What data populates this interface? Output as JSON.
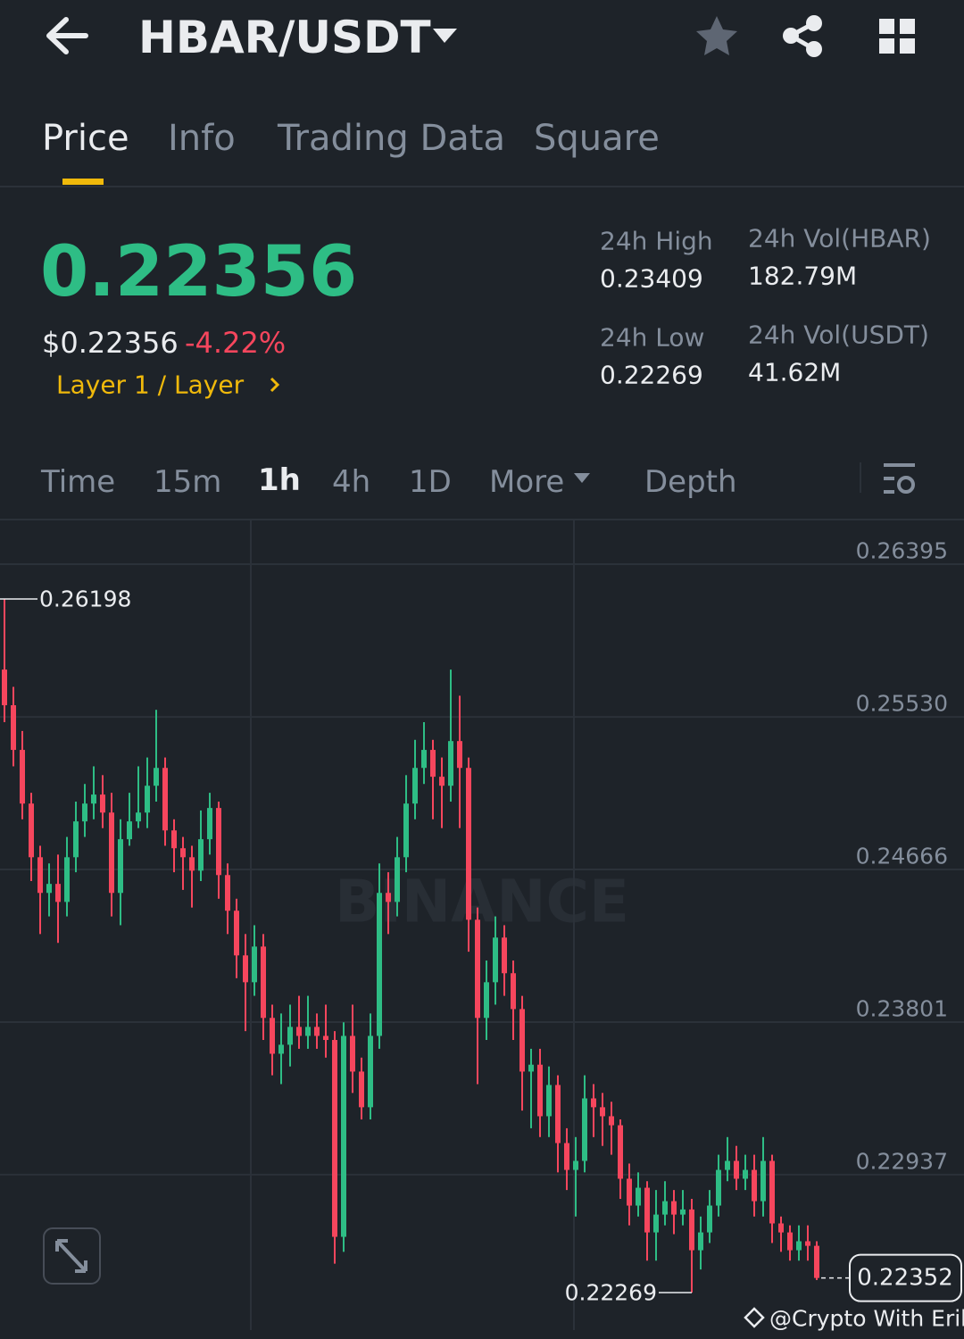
{
  "header": {
    "pair": "HBAR/USDT"
  },
  "tabs": [
    "Price",
    "Info",
    "Trading Data",
    "Square"
  ],
  "ticker": {
    "price": "0.22356",
    "usd_price": "$0.22356",
    "change": "-4.22%",
    "tag": "Layer 1 / Layer",
    "stats": [
      {
        "label": "24h High",
        "value": "0.23409"
      },
      {
        "label": "24h Vol(HBAR)",
        "value": "182.79M"
      },
      {
        "label": "24h Low",
        "value": "0.22269"
      },
      {
        "label": "24h Vol(USDT)",
        "value": "41.62M"
      }
    ]
  },
  "intervals": [
    "Time",
    "15m",
    "1h",
    "4h",
    "1D",
    "More",
    "Depth"
  ],
  "watermark": "BINANCE",
  "credit": "@Crypto With Erik",
  "chart_data": {
    "type": "candlestick",
    "up_color": "#2ebd85",
    "down_color": "#f6465d",
    "open": [
      0.25798,
      0.25596,
      0.25343,
      0.25039,
      0.24735,
      0.24533,
      0.24584,
      0.24482,
      0.24735,
      0.24938,
      0.25039,
      0.2509,
      0.24988,
      0.24533,
      0.24837,
      0.24938,
      0.24988,
      0.2514,
      0.25241,
      0.24887,
      0.24786,
      0.24735,
      0.24659,
      0.24837,
      0.25014,
      0.24634,
      0.24432,
      0.24179,
      0.24027,
      0.24229,
      0.23825,
      0.23622,
      0.23673,
      0.23774,
      0.23723,
      0.23774,
      0.23723,
      0.237,
      0.22585,
      0.23723,
      0.23521,
      0.23319,
      0.23723,
      0.24533,
      0.24482,
      0.24735,
      0.25039,
      0.25241,
      0.25343,
      0.25191,
      0.2514,
      0.25393,
      0.25241,
      0.24381,
      0.23825,
      0.24027,
      0.2428,
      0.24078,
      0.23875,
      0.23521,
      0.2356,
      0.23268,
      0.23445,
      0.23116,
      0.22964,
      0.23015,
      0.23369,
      0.23319,
      0.23268,
      0.23217,
      0.22914,
      0.22762,
      0.22863,
      0.2261,
      0.22711,
      0.22787,
      0.22711,
      0.2274,
      0.22509,
      0.2261,
      0.22762,
      0.22964,
      0.23015,
      0.22914,
      0.22964,
      0.22787,
      0.23015,
      0.22661,
      0.2261,
      0.22509,
      0.2256,
      0.22534
    ],
    "high": [
      0.26198,
      0.257,
      0.2545,
      0.251,
      0.248,
      0.247,
      0.2475,
      0.2485,
      0.2505,
      0.2515,
      0.2525,
      0.252,
      0.251,
      0.2495,
      0.251,
      0.2525,
      0.253,
      0.2557,
      0.253,
      0.2495,
      0.2485,
      0.248,
      0.25,
      0.251,
      0.2505,
      0.247,
      0.245,
      0.243,
      0.2435,
      0.243,
      0.239,
      0.2385,
      0.239,
      0.2395,
      0.2395,
      0.2385,
      0.239,
      0.2375,
      0.238,
      0.239,
      0.236,
      0.2385,
      0.247,
      0.2465,
      0.2485,
      0.252,
      0.254,
      0.255,
      0.254,
      0.253,
      0.25798,
      0.2565,
      0.253,
      0.2445,
      0.2415,
      0.244,
      0.2435,
      0.2415,
      0.2395,
      0.2365,
      0.2365,
      0.2355,
      0.235,
      0.232,
      0.2315,
      0.235,
      0.2345,
      0.234,
      0.2335,
      0.2325,
      0.23,
      0.2295,
      0.229,
      0.2285,
      0.229,
      0.2285,
      0.2285,
      0.228,
      0.227,
      0.2285,
      0.2305,
      0.2315,
      0.231,
      0.2305,
      0.2305,
      0.2315,
      0.2305,
      0.227,
      0.2265,
      0.2265,
      0.2265,
      0.2256
    ],
    "low": [
      0.255,
      0.2525,
      0.2495,
      0.246,
      0.243,
      0.244,
      0.2425,
      0.244,
      0.2465,
      0.2485,
      0.2495,
      0.249,
      0.244,
      0.2435,
      0.248,
      0.249,
      0.249,
      0.2505,
      0.248,
      0.2465,
      0.2455,
      0.2445,
      0.246,
      0.2475,
      0.245,
      0.243,
      0.2405,
      0.2375,
      0.2395,
      0.237,
      0.235,
      0.2345,
      0.2355,
      0.2365,
      0.2365,
      0.2365,
      0.236,
      0.22433,
      0.225,
      0.234,
      0.2325,
      0.2325,
      0.2365,
      0.243,
      0.244,
      0.2465,
      0.2495,
      0.2515,
      0.2495,
      0.249,
      0.2505,
      0.249,
      0.242,
      0.2345,
      0.237,
      0.239,
      0.2395,
      0.237,
      0.233,
      0.232,
      0.2315,
      0.2315,
      0.2295,
      0.2285,
      0.227,
      0.2295,
      0.2315,
      0.231,
      0.2305,
      0.228,
      0.2265,
      0.227,
      0.2245,
      0.2245,
      0.2265,
      0.226,
      0.2265,
      0.22269,
      0.224,
      0.2255,
      0.227,
      0.229,
      0.2285,
      0.2285,
      0.227,
      0.227,
      0.2255,
      0.225,
      0.2245,
      0.2245,
      0.2245,
      0.2234
    ],
    "close": [
      0.25596,
      0.25343,
      0.25039,
      0.24735,
      0.24533,
      0.24584,
      0.24482,
      0.24735,
      0.24938,
      0.25039,
      0.2509,
      0.24988,
      0.24533,
      0.24837,
      0.24938,
      0.24988,
      0.2514,
      0.25241,
      0.24887,
      0.24786,
      0.24735,
      0.24659,
      0.24837,
      0.25014,
      0.24634,
      0.24432,
      0.24179,
      0.24027,
      0.24229,
      0.23825,
      0.23622,
      0.23673,
      0.23774,
      0.23723,
      0.23774,
      0.23723,
      0.237,
      0.22585,
      0.23723,
      0.23521,
      0.23319,
      0.23723,
      0.24533,
      0.24482,
      0.24735,
      0.25039,
      0.25241,
      0.25343,
      0.25191,
      0.2514,
      0.25393,
      0.25241,
      0.24381,
      0.23825,
      0.24027,
      0.2428,
      0.24078,
      0.23875,
      0.23521,
      0.2356,
      0.23268,
      0.23445,
      0.23116,
      0.22964,
      0.23015,
      0.23369,
      0.23319,
      0.23268,
      0.23217,
      0.22914,
      0.22762,
      0.22863,
      0.2261,
      0.22711,
      0.22787,
      0.22711,
      0.2274,
      0.22509,
      0.2261,
      0.22762,
      0.22964,
      0.23015,
      0.22914,
      0.22964,
      0.22787,
      0.23015,
      0.22661,
      0.2261,
      0.22509,
      0.2256,
      0.22534,
      0.22352
    ],
    "ylim": [
      0.22072,
      0.26395
    ],
    "yticks": [
      0.26395,
      {
        "value": 0.2553,
        "label": "0.25530"
      },
      0.24666,
      0.23801,
      0.22937
    ],
    "grid": true,
    "high_marker": 0.26198,
    "low_marker": 0.22269,
    "last_price": 0.22352
  }
}
